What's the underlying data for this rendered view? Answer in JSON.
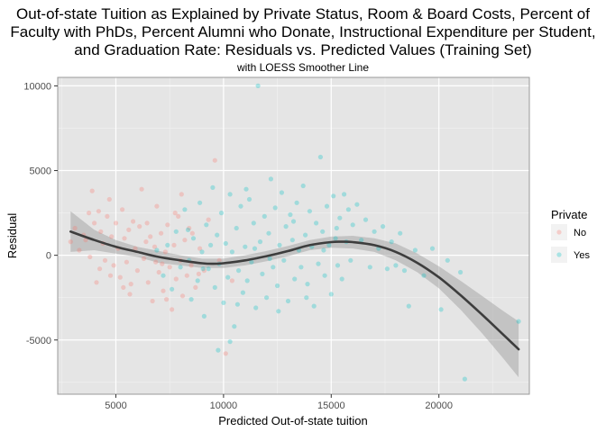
{
  "chart_data": {
    "type": "scatter",
    "title_lines": [
      "Out-of-state Tuition as Explained by Private Status, Room & Board Costs, Percent of",
      "Faculty with PhDs, Percent Alumni who Donate, Instructional Expenditure per Student,",
      "and Graduation Rate: Residuals vs. Predicted Values (Training Set)"
    ],
    "subtitle": "with LOESS Smoother Line",
    "xlabel": "Predicted Out-of-state tuition",
    "ylabel": "Residual",
    "xlim": [
      2300,
      24200
    ],
    "ylim": [
      -8200,
      10500
    ],
    "x_ticks": [
      5000,
      10000,
      15000,
      20000
    ],
    "x_tick_labels": [
      "5000",
      "10000",
      "15000",
      "20000"
    ],
    "y_ticks": [
      -5000,
      0,
      5000,
      10000
    ],
    "y_tick_labels": [
      "-5000",
      "0",
      "5000",
      "10000"
    ],
    "grid": true,
    "legend": {
      "title": "Private",
      "position": "right",
      "entries": [
        {
          "label": "No",
          "color": "#F8766D"
        },
        {
          "label": "Yes",
          "color": "#00BFC4"
        }
      ]
    },
    "series": [
      {
        "name": "No",
        "color": "#F8766D",
        "points": [
          [
            2900,
            800
          ],
          [
            3100,
            1600
          ],
          [
            3300,
            300
          ],
          [
            3500,
            1200
          ],
          [
            3600,
            900
          ],
          [
            3800,
            -100
          ],
          [
            3900,
            3800
          ],
          [
            4000,
            1900
          ],
          [
            4100,
            -1600
          ],
          [
            4200,
            2600
          ],
          [
            4300,
            1400
          ],
          [
            4400,
            700
          ],
          [
            4500,
            -300
          ],
          [
            4600,
            2300
          ],
          [
            4700,
            3300
          ],
          [
            4800,
            1100
          ],
          [
            4900,
            -600
          ],
          [
            5000,
            1900
          ],
          [
            5100,
            400
          ],
          [
            5200,
            -1300
          ],
          [
            5300,
            2700
          ],
          [
            5400,
            1000
          ],
          [
            5500,
            -400
          ],
          [
            5600,
            1500
          ],
          [
            5700,
            -1700
          ],
          [
            5800,
            2000
          ],
          [
            5900,
            400
          ],
          [
            6000,
            -900
          ],
          [
            6100,
            1700
          ],
          [
            6200,
            3900
          ],
          [
            6300,
            -200
          ],
          [
            6400,
            800
          ],
          [
            6500,
            -1600
          ],
          [
            6600,
            1100
          ],
          [
            6700,
            -2700
          ],
          [
            6800,
            500
          ],
          [
            6900,
            2900
          ],
          [
            7000,
            -1000
          ],
          [
            7100,
            1300
          ],
          [
            7200,
            -2100
          ],
          [
            7300,
            200
          ],
          [
            7400,
            1800
          ],
          [
            7500,
            -700
          ],
          [
            7600,
            -3200
          ],
          [
            7700,
            600
          ],
          [
            7800,
            -1400
          ],
          [
            7900,
            2300
          ],
          [
            8000,
            -300
          ],
          [
            8100,
            -2400
          ],
          [
            8200,
            900
          ],
          [
            8300,
            -1200
          ],
          [
            8400,
            1600
          ],
          [
            8500,
            -600
          ],
          [
            8700,
            -1900
          ],
          [
            8900,
            400
          ],
          [
            9100,
            -900
          ],
          [
            9300,
            2100
          ],
          [
            9600,
            5600
          ],
          [
            9800,
            -300
          ],
          [
            10100,
            -5800
          ],
          [
            10400,
            -1500
          ],
          [
            4250,
            -800
          ],
          [
            5650,
            -2300
          ],
          [
            6450,
            1900
          ],
          [
            7150,
            -500
          ],
          [
            7750,
            2500
          ],
          [
            8550,
            1300
          ],
          [
            8050,
            3600
          ],
          [
            5350,
            -1900
          ],
          [
            4750,
            -1200
          ],
          [
            3750,
            2500
          ],
          [
            6850,
            -400
          ],
          [
            7350,
            -2600
          ],
          [
            8850,
            -1100
          ]
        ]
      },
      {
        "name": "Yes",
        "color": "#00BFC4",
        "points": [
          [
            6900,
            300
          ],
          [
            7200,
            -1200
          ],
          [
            7400,
            600
          ],
          [
            7600,
            -2000
          ],
          [
            7800,
            1400
          ],
          [
            8000,
            -700
          ],
          [
            8200,
            2700
          ],
          [
            8400,
            -300
          ],
          [
            8500,
            -2600
          ],
          [
            8600,
            1000
          ],
          [
            8800,
            -1500
          ],
          [
            8900,
            3100
          ],
          [
            9000,
            200
          ],
          [
            9100,
            -3600
          ],
          [
            9200,
            1800
          ],
          [
            9300,
            -800
          ],
          [
            9400,
            600
          ],
          [
            9500,
            4000
          ],
          [
            9600,
            -1900
          ],
          [
            9700,
            1200
          ],
          [
            9800,
            -500
          ],
          [
            9900,
            2500
          ],
          [
            10000,
            -2800
          ],
          [
            10100,
            700
          ],
          [
            10200,
            -1300
          ],
          [
            10300,
            3600
          ],
          [
            10400,
            200
          ],
          [
            10500,
            -4200
          ],
          [
            10600,
            1600
          ],
          [
            10700,
            -900
          ],
          [
            10800,
            2900
          ],
          [
            10900,
            -2200
          ],
          [
            11000,
            500
          ],
          [
            11100,
            -1500
          ],
          [
            11200,
            3300
          ],
          [
            11300,
            -400
          ],
          [
            11400,
            1900
          ],
          [
            11500,
            -3100
          ],
          [
            11600,
            10000
          ],
          [
            11700,
            800
          ],
          [
            11800,
            -1100
          ],
          [
            11900,
            2300
          ],
          [
            12000,
            -2500
          ],
          [
            12100,
            1300
          ],
          [
            12200,
            4500
          ],
          [
            12300,
            -700
          ],
          [
            12400,
            2800
          ],
          [
            12500,
            -1800
          ],
          [
            12600,
            600
          ],
          [
            12700,
            3700
          ],
          [
            12800,
            -300
          ],
          [
            12900,
            1700
          ],
          [
            13000,
            -2700
          ],
          [
            13100,
            2400
          ],
          [
            13200,
            900
          ],
          [
            13300,
            -1400
          ],
          [
            13400,
            3100
          ],
          [
            13500,
            300
          ],
          [
            13600,
            -700
          ],
          [
            13700,
            4100
          ],
          [
            13800,
            1200
          ],
          [
            13900,
            -1700
          ],
          [
            14000,
            2600
          ],
          [
            14100,
            500
          ],
          [
            14200,
            -3000
          ],
          [
            14300,
            1900
          ],
          [
            14400,
            -500
          ],
          [
            14500,
            5800
          ],
          [
            14600,
            1400
          ],
          [
            14700,
            -1200
          ],
          [
            14800,
            2900
          ],
          [
            14900,
            600
          ],
          [
            15000,
            -2300
          ],
          [
            15100,
            3500
          ],
          [
            15200,
            1000
          ],
          [
            15300,
            -600
          ],
          [
            15400,
            2200
          ],
          [
            15500,
            -1400
          ],
          [
            15600,
            3600
          ],
          [
            15700,
            800
          ],
          [
            15800,
            2700
          ],
          [
            15900,
            -300
          ],
          [
            16000,
            1800
          ],
          [
            16200,
            3000
          ],
          [
            16400,
            900
          ],
          [
            16600,
            2100
          ],
          [
            16800,
            -700
          ],
          [
            17000,
            1400
          ],
          [
            17200,
            400
          ],
          [
            17400,
            1700
          ],
          [
            17600,
            -800
          ],
          [
            17800,
            800
          ],
          [
            18000,
            -600
          ],
          [
            18200,
            1300
          ],
          [
            18400,
            -900
          ],
          [
            18600,
            -3000
          ],
          [
            18900,
            300
          ],
          [
            19300,
            -1200
          ],
          [
            19700,
            400
          ],
          [
            20100,
            -3200
          ],
          [
            20400,
            -300
          ],
          [
            21000,
            -1000
          ],
          [
            21200,
            -7300
          ],
          [
            23700,
            -3900
          ],
          [
            10300,
            -5100
          ],
          [
            9750,
            -5600
          ],
          [
            11050,
            3900
          ],
          [
            12550,
            -3300
          ],
          [
            13250,
            2000
          ],
          [
            10650,
            -2900
          ],
          [
            9050,
            -800
          ],
          [
            8350,
            1500
          ],
          [
            11450,
            400
          ],
          [
            12150,
            -200
          ],
          [
            13850,
            -2500
          ],
          [
            14650,
            300
          ],
          [
            15250,
            1600
          ]
        ]
      }
    ],
    "smoother": {
      "name": "LOESS",
      "color": "#3d3d3d",
      "band_color": "#999999",
      "curve": [
        [
          2900,
          1400
        ],
        [
          4000,
          900
        ],
        [
          5000,
          500
        ],
        [
          6000,
          200
        ],
        [
          7000,
          -100
        ],
        [
          8000,
          -300
        ],
        [
          9000,
          -470
        ],
        [
          9500,
          -500
        ],
        [
          10000,
          -470
        ],
        [
          11000,
          -300
        ],
        [
          12000,
          -50
        ],
        [
          13000,
          250
        ],
        [
          14000,
          600
        ],
        [
          15000,
          780
        ],
        [
          15500,
          800
        ],
        [
          16000,
          780
        ],
        [
          17000,
          600
        ],
        [
          18000,
          200
        ],
        [
          19000,
          -450
        ],
        [
          20000,
          -1300
        ],
        [
          21000,
          -2350
        ],
        [
          22000,
          -3500
        ],
        [
          23000,
          -4700
        ],
        [
          23700,
          -5550
        ]
      ],
      "upper": [
        [
          2900,
          2600
        ],
        [
          4000,
          1500
        ],
        [
          5000,
          900
        ],
        [
          6000,
          500
        ],
        [
          7000,
          250
        ],
        [
          8000,
          0
        ],
        [
          9000,
          -200
        ],
        [
          10000,
          -200
        ],
        [
          11000,
          0
        ],
        [
          12000,
          250
        ],
        [
          13000,
          550
        ],
        [
          14000,
          900
        ],
        [
          15000,
          1100
        ],
        [
          16000,
          1150
        ],
        [
          17000,
          1000
        ],
        [
          18000,
          700
        ],
        [
          19000,
          100
        ],
        [
          20000,
          -650
        ],
        [
          21000,
          -1500
        ],
        [
          22000,
          -2400
        ],
        [
          23000,
          -3300
        ],
        [
          23700,
          -3900
        ]
      ],
      "lower": [
        [
          2900,
          200
        ],
        [
          4000,
          300
        ],
        [
          5000,
          100
        ],
        [
          6000,
          -100
        ],
        [
          7000,
          -450
        ],
        [
          8000,
          -600
        ],
        [
          9000,
          -750
        ],
        [
          10000,
          -750
        ],
        [
          11000,
          -600
        ],
        [
          12000,
          -350
        ],
        [
          13000,
          -50
        ],
        [
          14000,
          300
        ],
        [
          15000,
          450
        ],
        [
          16000,
          400
        ],
        [
          17000,
          200
        ],
        [
          18000,
          -300
        ],
        [
          19000,
          -1000
        ],
        [
          20000,
          -1950
        ],
        [
          21000,
          -3200
        ],
        [
          22000,
          -4600
        ],
        [
          23000,
          -6100
        ],
        [
          23700,
          -7200
        ]
      ]
    }
  }
}
